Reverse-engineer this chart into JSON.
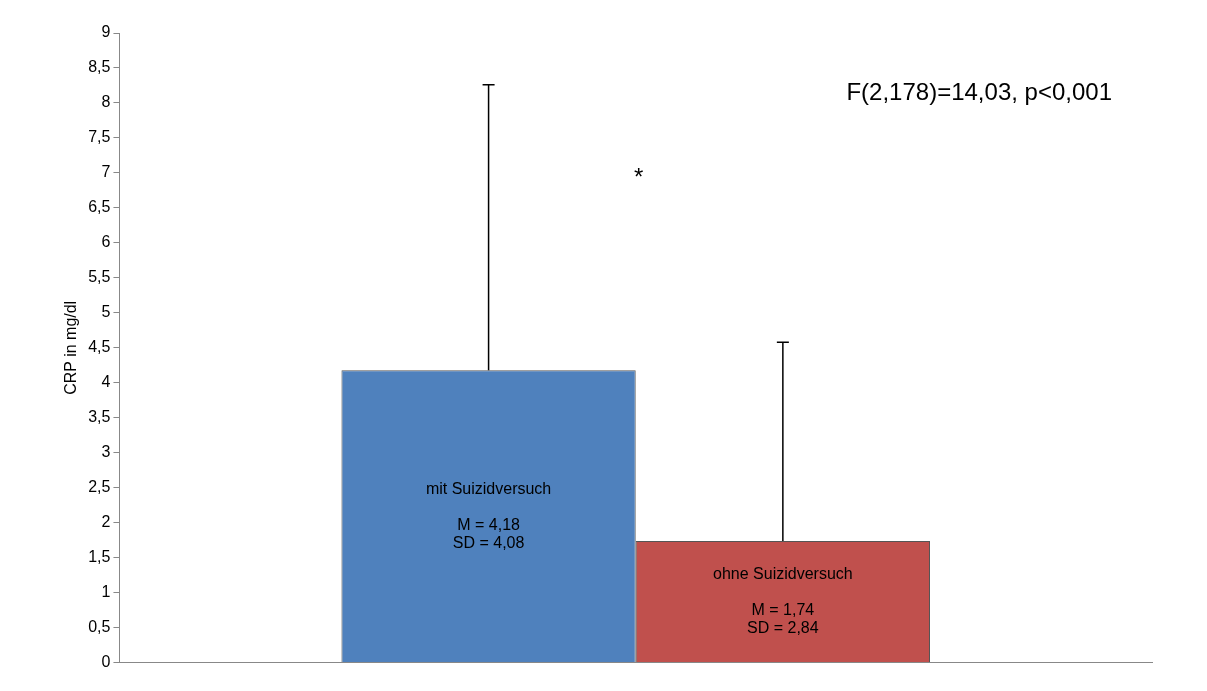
{
  "chart_data": {
    "type": "bar",
    "ylabel": "CRP in mg/dl",
    "categories": [
      null
    ],
    "series": [
      {
        "name": "mit Suizidversuch",
        "color": "#4f81bd",
        "values": [
          4.18
        ],
        "errors": [
          [
            4.18,
            8.26
          ]
        ],
        "value_labels": [
          "M = 4,18\nSD = 4,08"
        ]
      },
      {
        "name": "ohne Suizidversuch",
        "color": "#c0504d",
        "values": [
          1.74
        ],
        "errors": [
          [
            1.74,
            4.58
          ]
        ],
        "value_labels": [
          "M = 1,74\nSD = 2,84"
        ]
      }
    ],
    "ylim": [
      0,
      9
    ],
    "yticks": [
      0,
      {
        "value": 0.5,
        "label": "0,5"
      },
      1,
      {
        "value": 1.5,
        "label": "1,5"
      },
      2,
      {
        "value": 2.5,
        "label": "2,5"
      },
      3,
      {
        "value": 3.5,
        "label": "3,5"
      },
      4,
      {
        "value": 4.5,
        "label": "4,5"
      },
      5,
      {
        "value": 5.5,
        "label": "5,5"
      },
      6,
      {
        "value": 6.5,
        "label": "6,5"
      },
      7,
      {
        "value": 7.5,
        "label": "7,5"
      },
      8,
      {
        "value": 8.5,
        "label": "8,5"
      },
      9
    ],
    "annotations": [
      "F(2,178)=14,03, p<0,001",
      "*"
    ],
    "grid": false,
    "legend": false
  }
}
